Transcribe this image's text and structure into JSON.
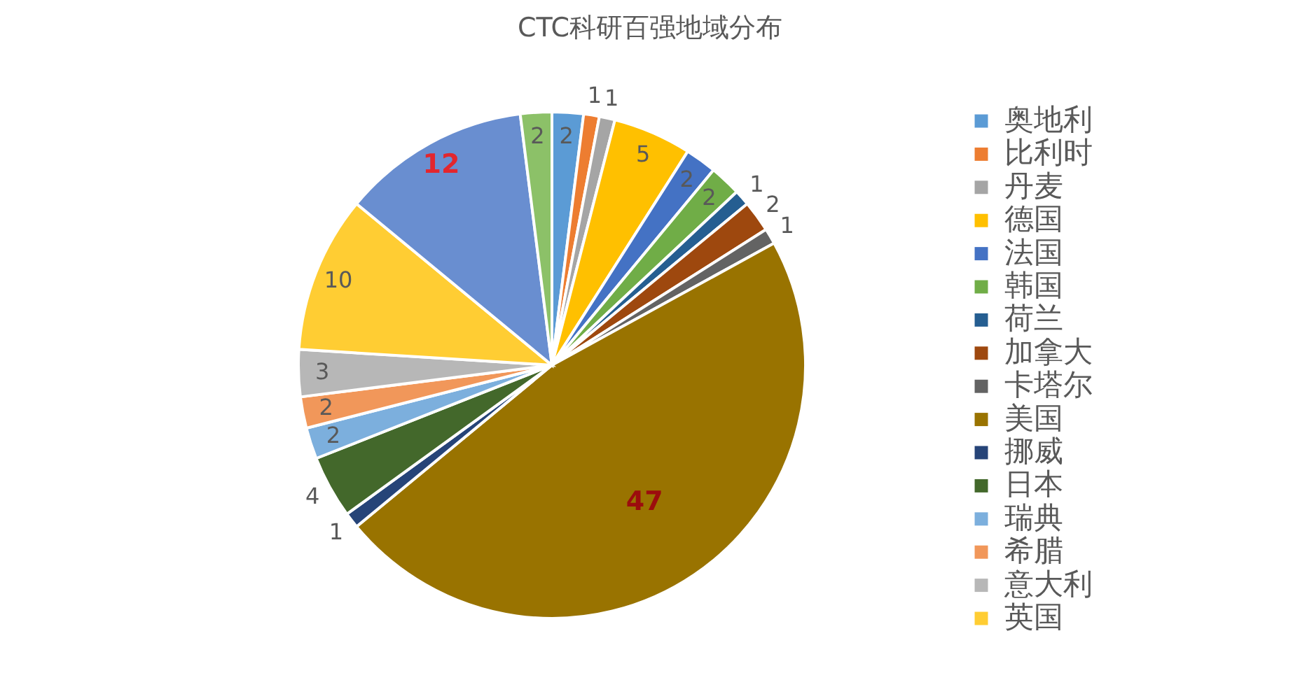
{
  "chart_data": {
    "type": "pie",
    "title": "CTC科研百强地域分布",
    "categories": [
      "奥地利",
      "比利时",
      "丹麦",
      "德国",
      "法国",
      "韩国",
      "荷兰",
      "加拿大",
      "卡塔尔",
      "美国",
      "挪威",
      "日本",
      "瑞典",
      "希腊",
      "意大利",
      "英国",
      null,
      null
    ],
    "values": [
      2,
      1,
      1,
      5,
      2,
      2,
      1,
      2,
      1,
      47,
      1,
      4,
      2,
      2,
      3,
      10,
      12,
      2
    ],
    "colors": [
      "#5b9bd5",
      "#ed7d31",
      "#a5a5a5",
      "#ffc000",
      "#4472c4",
      "#70ad47",
      "#255e91",
      "#9e480e",
      "#636363",
      "#997300",
      "#264478",
      "#43682b",
      "#7cafdd",
      "#f1975a",
      "#b7b7b7",
      "#ffcd33",
      "#698ed0",
      "#8cc168"
    ],
    "data_labels": true,
    "legend": "right"
  }
}
